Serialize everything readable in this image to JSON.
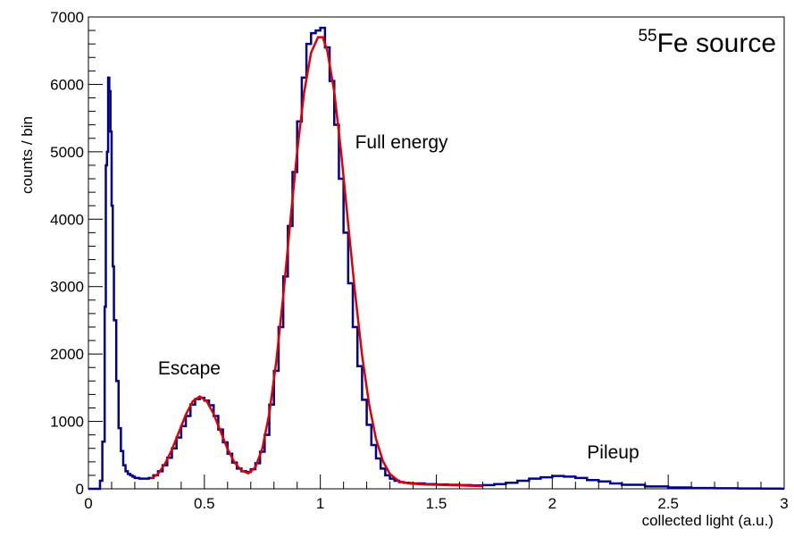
{
  "chart_data": {
    "type": "histogram",
    "title_superscript": "55",
    "title": "Fe source",
    "xlabel": "collected light (a.u.)",
    "ylabel": "counts / bin",
    "xlim": [
      0,
      3
    ],
    "ylim": [
      0,
      7000
    ],
    "x_ticks": [
      "0",
      "0.5",
      "1",
      "1.5",
      "2",
      "2.5",
      "3"
    ],
    "y_ticks": [
      "0",
      "1000",
      "2000",
      "3000",
      "4000",
      "5000",
      "6000",
      "7000"
    ],
    "annotations": [
      {
        "id": "escape",
        "text": "Escape",
        "x": 0.3,
        "y": 1700
      },
      {
        "id": "full-energy",
        "text": "Full energy",
        "x": 1.15,
        "y": 5050
      },
      {
        "id": "pileup",
        "text": "Pileup",
        "x": 2.15,
        "y": 450
      }
    ],
    "series": [
      {
        "kind": "histogram",
        "color": "#00008b",
        "bin_width": 0.02,
        "bins": [
          [
            0.0,
            0
          ],
          [
            0.02,
            0
          ],
          [
            0.04,
            0
          ],
          [
            0.05,
            120
          ],
          [
            0.06,
            700
          ],
          [
            0.07,
            2700
          ],
          [
            0.075,
            4800
          ],
          [
            0.08,
            5000
          ],
          [
            0.085,
            6100
          ],
          [
            0.09,
            5900
          ],
          [
            0.095,
            5300
          ],
          [
            0.1,
            4200
          ],
          [
            0.105,
            3300
          ],
          [
            0.11,
            2500
          ],
          [
            0.12,
            1600
          ],
          [
            0.13,
            900
          ],
          [
            0.14,
            560
          ],
          [
            0.15,
            350
          ],
          [
            0.16,
            260
          ],
          [
            0.17,
            220
          ],
          [
            0.18,
            200
          ],
          [
            0.19,
            180
          ],
          [
            0.2,
            160
          ],
          [
            0.22,
            150
          ],
          [
            0.24,
            150
          ],
          [
            0.26,
            160
          ],
          [
            0.28,
            200
          ],
          [
            0.3,
            260
          ],
          [
            0.32,
            350
          ],
          [
            0.34,
            460
          ],
          [
            0.36,
            600
          ],
          [
            0.38,
            760
          ],
          [
            0.4,
            930
          ],
          [
            0.42,
            1080
          ],
          [
            0.44,
            1250
          ],
          [
            0.46,
            1330
          ],
          [
            0.48,
            1350
          ],
          [
            0.5,
            1310
          ],
          [
            0.52,
            1240
          ],
          [
            0.54,
            1080
          ],
          [
            0.56,
            880
          ],
          [
            0.58,
            690
          ],
          [
            0.6,
            520
          ],
          [
            0.62,
            390
          ],
          [
            0.64,
            300
          ],
          [
            0.66,
            260
          ],
          [
            0.68,
            250
          ],
          [
            0.7,
            290
          ],
          [
            0.72,
            380
          ],
          [
            0.74,
            550
          ],
          [
            0.76,
            800
          ],
          [
            0.78,
            1250
          ],
          [
            0.8,
            1750
          ],
          [
            0.82,
            2400
          ],
          [
            0.84,
            3150
          ],
          [
            0.86,
            3900
          ],
          [
            0.88,
            4700
          ],
          [
            0.9,
            5450
          ],
          [
            0.92,
            6100
          ],
          [
            0.94,
            6600
          ],
          [
            0.96,
            6760
          ],
          [
            0.98,
            6800
          ],
          [
            1.0,
            6840
          ],
          [
            1.02,
            6550
          ],
          [
            1.04,
            6050
          ],
          [
            1.06,
            5400
          ],
          [
            1.08,
            4600
          ],
          [
            1.1,
            3800
          ],
          [
            1.12,
            3050
          ],
          [
            1.14,
            2400
          ],
          [
            1.16,
            1820
          ],
          [
            1.18,
            1320
          ],
          [
            1.2,
            950
          ],
          [
            1.22,
            650
          ],
          [
            1.24,
            450
          ],
          [
            1.26,
            300
          ],
          [
            1.28,
            200
          ],
          [
            1.3,
            150
          ],
          [
            1.32,
            120
          ],
          [
            1.34,
            100
          ],
          [
            1.36,
            90
          ],
          [
            1.38,
            85
          ],
          [
            1.4,
            80
          ],
          [
            1.45,
            70
          ],
          [
            1.5,
            65
          ],
          [
            1.55,
            60
          ],
          [
            1.6,
            55
          ],
          [
            1.65,
            50
          ],
          [
            1.7,
            55
          ],
          [
            1.75,
            70
          ],
          [
            1.8,
            90
          ],
          [
            1.85,
            120
          ],
          [
            1.9,
            150
          ],
          [
            1.95,
            170
          ],
          [
            2.0,
            190
          ],
          [
            2.05,
            180
          ],
          [
            2.1,
            160
          ],
          [
            2.15,
            130
          ],
          [
            2.2,
            110
          ],
          [
            2.25,
            80
          ],
          [
            2.3,
            60
          ],
          [
            2.4,
            35
          ],
          [
            2.5,
            20
          ],
          [
            2.6,
            12
          ],
          [
            2.7,
            8
          ],
          [
            2.8,
            5
          ],
          [
            2.9,
            3
          ],
          [
            2.98,
            2
          ]
        ]
      },
      {
        "kind": "fit",
        "color": "#e00000",
        "points": [
          [
            0.27,
            150
          ],
          [
            0.3,
            220
          ],
          [
            0.33,
            370
          ],
          [
            0.36,
            580
          ],
          [
            0.39,
            840
          ],
          [
            0.42,
            1100
          ],
          [
            0.45,
            1300
          ],
          [
            0.48,
            1370
          ],
          [
            0.51,
            1300
          ],
          [
            0.54,
            1110
          ],
          [
            0.57,
            850
          ],
          [
            0.6,
            590
          ],
          [
            0.63,
            390
          ],
          [
            0.66,
            270
          ],
          [
            0.69,
            230
          ],
          [
            0.72,
            320
          ],
          [
            0.75,
            600
          ],
          [
            0.78,
            1120
          ],
          [
            0.81,
            1890
          ],
          [
            0.84,
            2860
          ],
          [
            0.87,
            3950
          ],
          [
            0.9,
            5000
          ],
          [
            0.93,
            5880
          ],
          [
            0.96,
            6470
          ],
          [
            0.99,
            6700
          ],
          [
            1.01,
            6700
          ],
          [
            1.03,
            6500
          ],
          [
            1.06,
            5890
          ],
          [
            1.09,
            4980
          ],
          [
            1.12,
            3930
          ],
          [
            1.15,
            2900
          ],
          [
            1.18,
            1980
          ],
          [
            1.21,
            1260
          ],
          [
            1.24,
            740
          ],
          [
            1.27,
            410
          ],
          [
            1.3,
            220
          ],
          [
            1.34,
            110
          ],
          [
            1.38,
            80
          ],
          [
            1.45,
            65
          ],
          [
            1.55,
            55
          ],
          [
            1.65,
            45
          ],
          [
            1.7,
            40
          ]
        ]
      }
    ],
    "grid": false,
    "legend": "none"
  }
}
